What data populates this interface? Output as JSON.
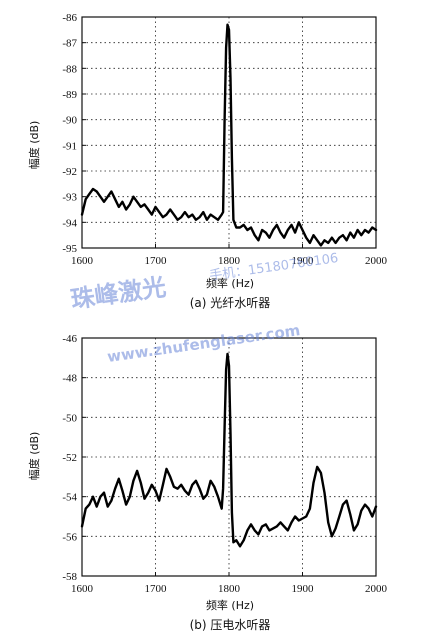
{
  "chart_data": [
    {
      "type": "line",
      "caption": "(a) 光纤水听器",
      "xlabel": "频率 (Hz)",
      "ylabel": "幅度 (dB)",
      "xlim": [
        1600,
        2000
      ],
      "ylim": [
        -95,
        -86
      ],
      "xticks": [
        1600,
        1700,
        1800,
        1900,
        2000
      ],
      "yticks": [
        -86,
        -87,
        -88,
        -89,
        -90,
        -91,
        -92,
        -93,
        -94,
        -95
      ],
      "grid": "dotted",
      "series": [
        {
          "x": [
            1600,
            1605,
            1610,
            1615,
            1620,
            1625,
            1630,
            1635,
            1640,
            1645,
            1650,
            1655,
            1660,
            1665,
            1670,
            1675,
            1680,
            1685,
            1690,
            1695,
            1700,
            1705,
            1710,
            1715,
            1720,
            1725,
            1730,
            1735,
            1740,
            1745,
            1750,
            1755,
            1760,
            1765,
            1770,
            1775,
            1780,
            1785,
            1790,
            1792,
            1794,
            1796,
            1798,
            1800,
            1802,
            1804,
            1806,
            1810,
            1815,
            1820,
            1825,
            1830,
            1835,
            1840,
            1845,
            1850,
            1855,
            1860,
            1865,
            1870,
            1875,
            1880,
            1885,
            1890,
            1895,
            1900,
            1905,
            1910,
            1915,
            1920,
            1925,
            1930,
            1935,
            1940,
            1945,
            1950,
            1955,
            1960,
            1965,
            1970,
            1975,
            1980,
            1985,
            1990,
            1995,
            2000
          ],
          "y": [
            -93.7,
            -93.1,
            -92.9,
            -92.7,
            -92.8,
            -93.0,
            -93.2,
            -93.0,
            -92.8,
            -93.1,
            -93.4,
            -93.2,
            -93.5,
            -93.3,
            -93.0,
            -93.2,
            -93.4,
            -93.3,
            -93.5,
            -93.7,
            -93.4,
            -93.6,
            -93.8,
            -93.7,
            -93.5,
            -93.7,
            -93.9,
            -93.8,
            -93.6,
            -93.8,
            -93.7,
            -93.9,
            -93.8,
            -93.6,
            -93.9,
            -93.7,
            -93.8,
            -93.9,
            -93.7,
            -93.6,
            -90.0,
            -87.2,
            -86.3,
            -86.5,
            -88.4,
            -91.5,
            -93.9,
            -94.2,
            -94.2,
            -94.1,
            -94.3,
            -94.2,
            -94.5,
            -94.7,
            -94.3,
            -94.4,
            -94.6,
            -94.3,
            -94.1,
            -94.4,
            -94.6,
            -94.3,
            -94.1,
            -94.4,
            -94.0,
            -94.3,
            -94.6,
            -94.8,
            -94.5,
            -94.7,
            -94.9,
            -94.7,
            -94.8,
            -94.6,
            -94.8,
            -94.6,
            -94.5,
            -94.7,
            -94.4,
            -94.6,
            -94.3,
            -94.5,
            -94.3,
            -94.4,
            -94.2,
            -94.3
          ]
        }
      ]
    },
    {
      "type": "line",
      "caption": "(b) 压电水听器",
      "xlabel": "频率 (Hz)",
      "ylabel": "幅度 (dB)",
      "xlim": [
        1600,
        2000
      ],
      "ylim": [
        -58,
        -46
      ],
      "xticks": [
        1600,
        1700,
        1800,
        1900,
        2000
      ],
      "yticks": [
        -46,
        -48,
        -50,
        -52,
        -54,
        -56,
        -58
      ],
      "grid": "dotted",
      "series": [
        {
          "x": [
            1600,
            1605,
            1610,
            1615,
            1620,
            1625,
            1630,
            1635,
            1640,
            1645,
            1650,
            1655,
            1660,
            1665,
            1670,
            1675,
            1680,
            1685,
            1690,
            1695,
            1700,
            1705,
            1710,
            1715,
            1720,
            1725,
            1730,
            1735,
            1740,
            1745,
            1750,
            1755,
            1760,
            1765,
            1770,
            1775,
            1780,
            1785,
            1790,
            1792,
            1794,
            1796,
            1798,
            1800,
            1802,
            1804,
            1806,
            1810,
            1815,
            1820,
            1825,
            1830,
            1835,
            1840,
            1845,
            1850,
            1855,
            1860,
            1865,
            1870,
            1875,
            1880,
            1885,
            1890,
            1895,
            1900,
            1905,
            1910,
            1915,
            1920,
            1925,
            1930,
            1935,
            1940,
            1945,
            1950,
            1955,
            1960,
            1965,
            1970,
            1975,
            1980,
            1985,
            1990,
            1995,
            2000
          ],
          "y": [
            -55.5,
            -54.6,
            -54.4,
            -54.0,
            -54.5,
            -54.0,
            -53.8,
            -54.5,
            -54.2,
            -53.6,
            -53.1,
            -53.7,
            -54.4,
            -54.0,
            -53.2,
            -52.7,
            -53.3,
            -54.1,
            -53.8,
            -53.4,
            -53.7,
            -54.2,
            -53.4,
            -52.6,
            -53.0,
            -53.5,
            -53.6,
            -53.4,
            -53.7,
            -53.9,
            -53.4,
            -53.2,
            -53.6,
            -54.1,
            -53.9,
            -53.2,
            -53.5,
            -54.0,
            -54.6,
            -53.6,
            -50.5,
            -47.6,
            -46.8,
            -47.4,
            -50.8,
            -54.8,
            -56.3,
            -56.2,
            -56.5,
            -56.2,
            -55.7,
            -55.4,
            -55.7,
            -55.9,
            -55.5,
            -55.4,
            -55.7,
            -55.6,
            -55.5,
            -55.3,
            -55.5,
            -55.7,
            -55.3,
            -55.0,
            -55.2,
            -55.1,
            -55.0,
            -54.6,
            -53.3,
            -52.5,
            -52.8,
            -53.8,
            -55.3,
            -56.0,
            -55.6,
            -55.0,
            -54.4,
            -54.2,
            -54.9,
            -55.7,
            -55.4,
            -54.7,
            -54.4,
            -54.6,
            -55.0,
            -54.5
          ]
        }
      ]
    }
  ],
  "watermark": {
    "line1": "珠峰激光",
    "line1_small": "手机：15180760106",
    "line2": "www.zhufenglaser.com"
  }
}
